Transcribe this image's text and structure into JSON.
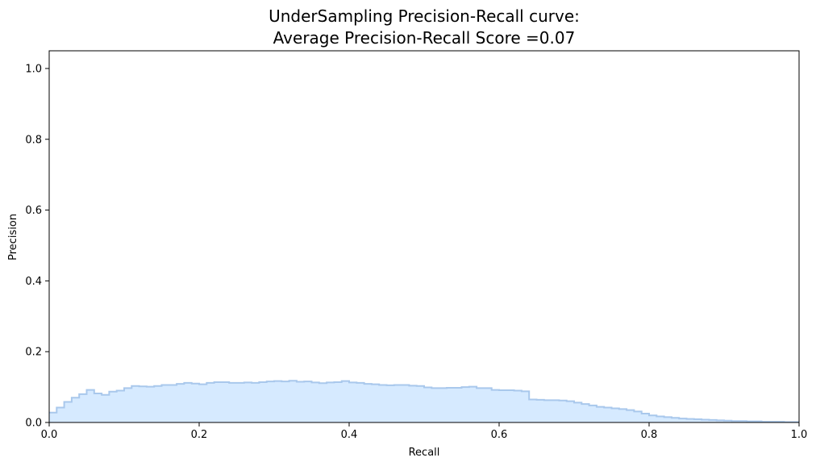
{
  "chart_data": {
    "type": "area",
    "title_line1": "UnderSampling Precision-Recall curve:",
    "title_line2": "Average Precision-Recall Score =0.07",
    "xlabel": "Recall",
    "ylabel": "Precision",
    "xlim": [
      0.0,
      1.0
    ],
    "ylim": [
      0.0,
      1.05
    ],
    "x_ticks": [
      "0.0",
      "0.2",
      "0.4",
      "0.6",
      "0.8",
      "1.0"
    ],
    "y_ticks": [
      "0.0",
      "0.2",
      "0.4",
      "0.6",
      "0.8",
      "1.0"
    ],
    "x_tick_values": [
      0.0,
      0.2,
      0.4,
      0.6,
      0.8,
      1.0
    ],
    "y_tick_values": [
      0.0,
      0.2,
      0.4,
      0.6,
      0.8,
      1.0
    ],
    "grid": false,
    "step": "post",
    "fill_color": "#d6eaff",
    "line_color": "#a9c8ec",
    "recall": [
      0.0,
      0.01,
      0.02,
      0.03,
      0.04,
      0.05,
      0.06,
      0.07,
      0.08,
      0.09,
      0.1,
      0.11,
      0.12,
      0.13,
      0.14,
      0.15,
      0.16,
      0.17,
      0.18,
      0.19,
      0.2,
      0.21,
      0.22,
      0.23,
      0.24,
      0.25,
      0.26,
      0.27,
      0.28,
      0.29,
      0.3,
      0.31,
      0.32,
      0.33,
      0.34,
      0.35,
      0.36,
      0.37,
      0.38,
      0.39,
      0.4,
      0.41,
      0.42,
      0.43,
      0.44,
      0.45,
      0.46,
      0.47,
      0.48,
      0.49,
      0.5,
      0.51,
      0.52,
      0.53,
      0.54,
      0.55,
      0.56,
      0.57,
      0.58,
      0.59,
      0.6,
      0.61,
      0.62,
      0.63,
      0.64,
      0.65,
      0.66,
      0.67,
      0.68,
      0.69,
      0.7,
      0.71,
      0.72,
      0.73,
      0.74,
      0.75,
      0.76,
      0.77,
      0.78,
      0.79,
      0.8,
      0.81,
      0.82,
      0.83,
      0.84,
      0.85,
      0.86,
      0.87,
      0.88,
      0.89,
      0.9,
      0.91,
      0.92,
      0.93,
      0.94,
      0.95,
      0.96,
      0.97,
      0.98,
      0.99,
      1.0
    ],
    "precision": [
      0.028,
      0.042,
      0.058,
      0.07,
      0.08,
      0.092,
      0.082,
      0.078,
      0.087,
      0.09,
      0.097,
      0.103,
      0.102,
      0.101,
      0.103,
      0.106,
      0.106,
      0.109,
      0.112,
      0.11,
      0.108,
      0.112,
      0.114,
      0.114,
      0.112,
      0.112,
      0.113,
      0.112,
      0.114,
      0.116,
      0.117,
      0.116,
      0.118,
      0.115,
      0.116,
      0.113,
      0.111,
      0.113,
      0.114,
      0.117,
      0.113,
      0.112,
      0.109,
      0.108,
      0.106,
      0.105,
      0.106,
      0.106,
      0.104,
      0.103,
      0.099,
      0.097,
      0.097,
      0.098,
      0.098,
      0.1,
      0.101,
      0.097,
      0.097,
      0.092,
      0.091,
      0.091,
      0.09,
      0.088,
      0.065,
      0.064,
      0.063,
      0.063,
      0.062,
      0.06,
      0.056,
      0.052,
      0.048,
      0.044,
      0.042,
      0.04,
      0.038,
      0.035,
      0.031,
      0.025,
      0.02,
      0.017,
      0.015,
      0.013,
      0.011,
      0.01,
      0.009,
      0.008,
      0.007,
      0.006,
      0.005,
      0.004,
      0.004,
      0.003,
      0.003,
      0.002,
      0.002,
      0.002,
      0.001,
      0.001,
      0.001
    ]
  }
}
